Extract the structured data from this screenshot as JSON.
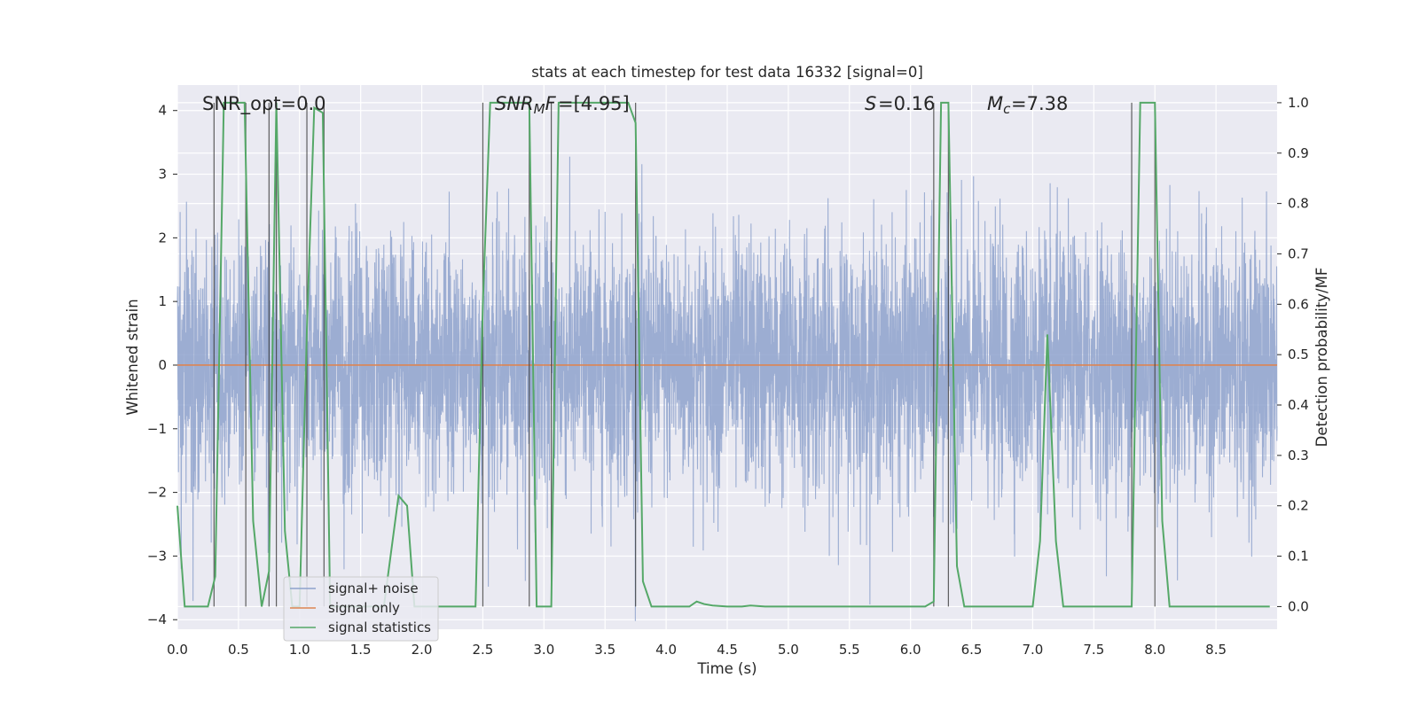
{
  "chart_data": {
    "type": "line",
    "title": "stats at each timestep for test data 16332 [signal=0]",
    "xlabel": "Time (s)",
    "ylabel": "Whitened strain",
    "y2label": "Detection probability/MF",
    "xlim": [
      0,
      9
    ],
    "ylim": [
      -4.15,
      4.4
    ],
    "y2lim": [
      -0.045,
      1.035
    ],
    "xticks": [
      "0.0",
      "0.5",
      "1.0",
      "1.5",
      "2.0",
      "2.5",
      "3.0",
      "3.5",
      "4.0",
      "4.5",
      "5.0",
      "5.5",
      "6.0",
      "6.5",
      "7.0",
      "7.5",
      "8.0",
      "8.5"
    ],
    "yticks": [
      "−4",
      "−3",
      "−2",
      "−1",
      "0",
      "1",
      "2",
      "3",
      "4"
    ],
    "y2ticks": [
      "0.0",
      "0.1",
      "0.2",
      "0.3",
      "0.4",
      "0.5",
      "0.6",
      "0.7",
      "0.8",
      "0.9",
      "1.0"
    ],
    "grid": true,
    "legend_position": "lower-left",
    "annotations": {
      "snr_opt": "SNR_opt=0.0",
      "snr_mf": "=[4.95]",
      "s": "=0.16",
      "mc": "=7.38"
    },
    "series": [
      {
        "name": "signal+ noise",
        "axis": "left",
        "color": "#8ea2cc",
        "description_values": "dense white noise, std ≈ 1",
        "amplitude_std": 1.0
      },
      {
        "name": "signal only",
        "axis": "left",
        "color": "#dd8452",
        "x": [
          0,
          9
        ],
        "y": [
          0,
          0
        ]
      },
      {
        "name": "signal statistics",
        "axis": "right",
        "color": "#55a868",
        "x": [
          0.0,
          0.06,
          0.25,
          0.31,
          0.38,
          0.48,
          0.55,
          0.62,
          0.69,
          0.75,
          0.81,
          0.88,
          0.94,
          1.0,
          1.06,
          1.12,
          1.19,
          1.25,
          1.31,
          1.56,
          1.62,
          1.69,
          1.81,
          1.88,
          1.94,
          2.0,
          2.06,
          2.44,
          2.5,
          2.56,
          2.62,
          2.88,
          2.94,
          3.06,
          3.12,
          3.19,
          3.69,
          3.75,
          3.81,
          3.88,
          4.19,
          4.25,
          4.31,
          4.38,
          4.5,
          4.62,
          4.69,
          4.81,
          6.12,
          6.19,
          6.25,
          6.31,
          6.38,
          6.44,
          6.5,
          7.0,
          7.06,
          7.12,
          7.19,
          7.25,
          7.81,
          7.88,
          7.94,
          8.0,
          8.06,
          8.12,
          8.25,
          8.94
        ],
        "y": [
          0.2,
          0.0,
          0.0,
          0.06,
          1.0,
          1.0,
          1.0,
          0.17,
          0.0,
          0.07,
          1.0,
          0.15,
          0.0,
          0.0,
          0.55,
          0.99,
          0.98,
          0.0,
          0.0,
          0.0,
          0.0,
          0.0,
          0.22,
          0.2,
          0.0,
          0.0,
          0.0,
          0.0,
          0.6,
          1.0,
          1.0,
          1.0,
          0.0,
          0.0,
          1.0,
          1.0,
          1.0,
          0.96,
          0.05,
          0.0,
          0.0,
          0.01,
          0.005,
          0.002,
          0.0,
          0.0,
          0.002,
          0.0,
          0.0,
          0.01,
          1.0,
          1.0,
          0.08,
          0.0,
          0.0,
          0.0,
          0.13,
          0.54,
          0.13,
          0.0,
          0.0,
          1.0,
          1.0,
          1.0,
          0.17,
          0.0,
          0.0,
          0.0
        ]
      }
    ],
    "vertical_lines_x": [
      0.3,
      0.56,
      0.75,
      0.81,
      1.06,
      1.2,
      2.5,
      2.88,
      3.06,
      3.75,
      6.19,
      6.31,
      7.81,
      8.0
    ]
  },
  "legend": {
    "items": [
      "signal+ noise",
      "signal only",
      "signal statistics"
    ]
  }
}
